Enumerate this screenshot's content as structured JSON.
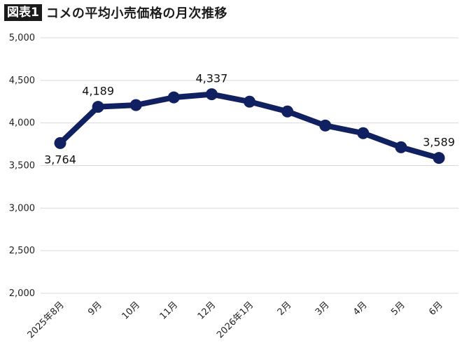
{
  "header": {
    "badge": "図表1",
    "title": "コメの平均小売価格の月次推移"
  },
  "chart_data": {
    "type": "line",
    "categories": [
      "2025年8月",
      "9月",
      "10月",
      "11月",
      "12月",
      "2026年1月",
      "2月",
      "3月",
      "4月",
      "5月",
      "6月"
    ],
    "series": [
      {
        "values": [
          3764,
          4189,
          4210,
          4300,
          4337,
          4250,
          4135,
          3970,
          3880,
          3715,
          3589
        ]
      }
    ],
    "data_labels": [
      {
        "index": 0,
        "text": "3,764",
        "position": "below"
      },
      {
        "index": 1,
        "text": "4,189",
        "position": "above"
      },
      {
        "index": 4,
        "text": "4,337",
        "position": "above"
      },
      {
        "index": 10,
        "text": "3,589",
        "position": "above"
      }
    ],
    "ylim": [
      2000,
      5000
    ],
    "yticks": [
      2000,
      2500,
      3000,
      3500,
      4000,
      4500,
      5000
    ],
    "ytick_labels": [
      "2,000",
      "2,500",
      "3,000",
      "3,500",
      "4,000",
      "4,500",
      "5,000"
    ],
    "grid": true,
    "line_color": "#102060",
    "grid_color": "#d9d9d9"
  }
}
